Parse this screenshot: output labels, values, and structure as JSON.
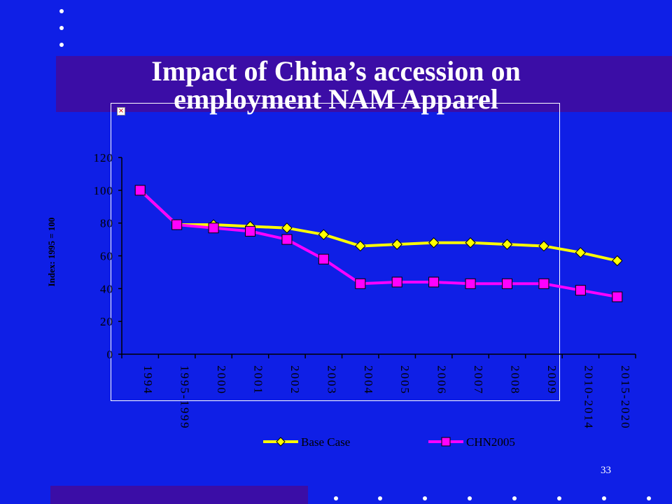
{
  "slide": {
    "title_line1": "Impact of China’s accession on",
    "title_line2": "employment NAM Apparel",
    "slide_number": "33",
    "colors": {
      "background": "#0f1fe6",
      "band": "#3b0da6"
    }
  },
  "chart_data": {
    "type": "line",
    "title": "",
    "xlabel": "",
    "ylabel": "Index: 1995 = 100",
    "categories": [
      "1994",
      "1995-1999",
      "2000",
      "2001",
      "2002",
      "2003",
      "2004",
      "2005",
      "2006",
      "2007",
      "2008",
      "2009",
      "2010-2014",
      "2015-2020"
    ],
    "ylim": [
      0,
      120
    ],
    "yticks": [
      0,
      20,
      40,
      60,
      80,
      100,
      120
    ],
    "grid": false,
    "legend_position": "bottom",
    "series": [
      {
        "name": "Base Case",
        "color": "#ffff00",
        "marker": "diamond",
        "values": [
          100,
          79,
          79,
          78,
          77,
          73,
          66,
          67,
          68,
          68,
          67,
          66,
          62,
          57
        ]
      },
      {
        "name": "CHN2005",
        "color": "#ff00ff",
        "marker": "square",
        "values": [
          100,
          79,
          77,
          75,
          70,
          58,
          43,
          44,
          44,
          43,
          43,
          43,
          39,
          35
        ]
      }
    ]
  }
}
